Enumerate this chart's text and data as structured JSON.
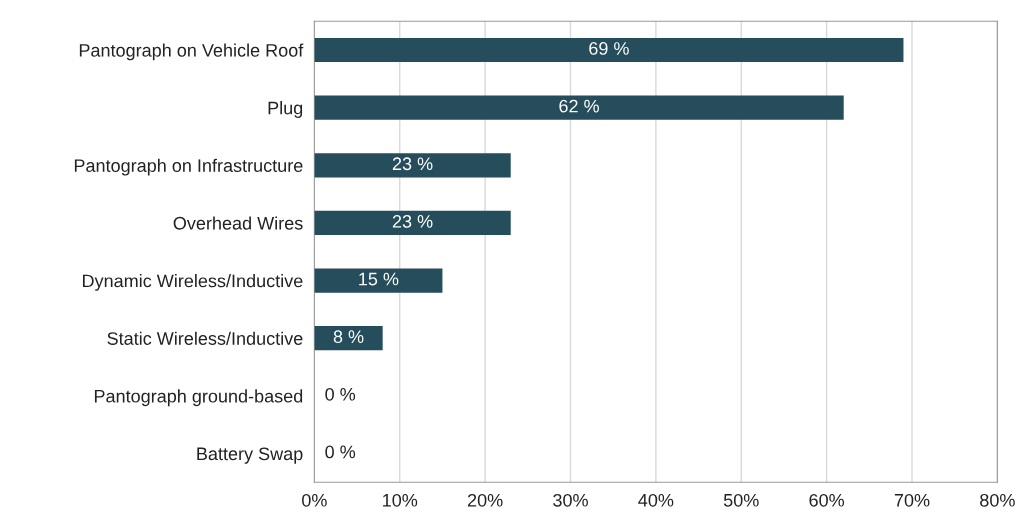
{
  "chart_data": {
    "type": "bar",
    "orientation": "horizontal",
    "categories": [
      "Pantograph on Vehicle Roof",
      "Plug",
      "Pantograph on Infrastructure",
      "Overhead Wires",
      "Dynamic Wireless/Inductive",
      "Static Wireless/Inductive",
      "Pantograph ground-based",
      "Battery Swap"
    ],
    "values": [
      69,
      62,
      23,
      23,
      15,
      8,
      0,
      0
    ],
    "value_labels": [
      "69 %",
      "62 %",
      "23 %",
      "23 %",
      "15 %",
      "8 %",
      "0 %",
      "0 %"
    ],
    "color": "#264d5c",
    "xlim": [
      0,
      80
    ],
    "xticks": [
      {
        "value": 0,
        "label": "0%"
      },
      {
        "value": 10,
        "label": "10%"
      },
      {
        "value": 20,
        "label": "20%"
      },
      {
        "value": 30,
        "label": "30%"
      },
      {
        "value": 40,
        "label": "40%"
      },
      {
        "value": 50,
        "label": "50%"
      },
      {
        "value": 60,
        "label": "60%"
      },
      {
        "value": 70,
        "label": "70%"
      },
      {
        "value": 80,
        "label": "80%"
      }
    ],
    "grid": "x",
    "legend": false
  }
}
